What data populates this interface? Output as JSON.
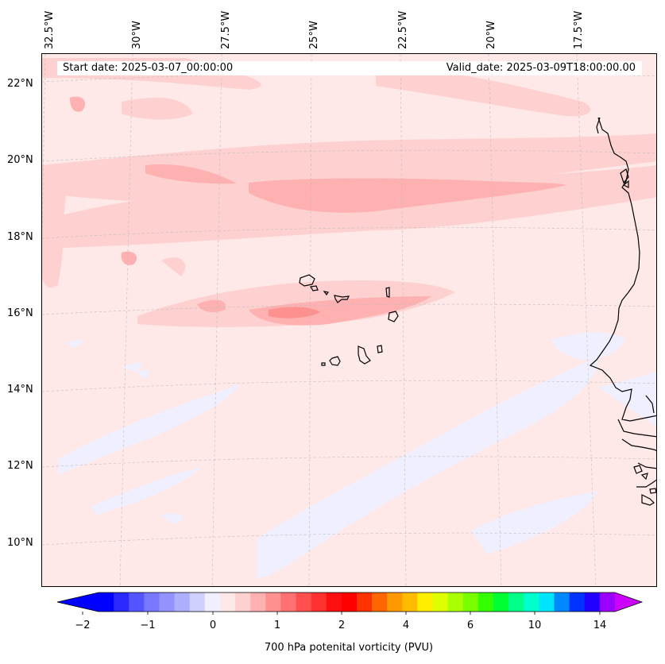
{
  "header": {
    "start_date": "Start date: 2025-03-07_00:00:00",
    "valid_date": "Valid_date: 2025-03-09T18:00:00.00"
  },
  "longitude_labels": [
    "32.5°W",
    "30°W",
    "27.5°W",
    "25°W",
    "22.5°W",
    "20°W",
    "17.5°W"
  ],
  "latitude_labels": [
    "22°N",
    "20°N",
    "18°N",
    "16°N",
    "14°N",
    "12°N",
    "10°N"
  ],
  "colorbar": {
    "label": "700 hPa potenital vorticity (PVU)",
    "tick_labels": [
      "−2",
      "−1",
      "0",
      "1",
      "2",
      "4",
      "6",
      "10",
      "14"
    ],
    "colors": [
      "#0000ff",
      "#2a2aff",
      "#5555ff",
      "#7777ff",
      "#9393ff",
      "#aeaeff",
      "#d0d0ff",
      "#efefff",
      "#ffe8e8",
      "#ffd0d0",
      "#ffb0b0",
      "#ff9090",
      "#ff7070",
      "#ff5050",
      "#ff3030",
      "#ff1010",
      "#ff0000",
      "#ff3300",
      "#ff6600",
      "#ff9900",
      "#ffbb00",
      "#ffee00",
      "#ddff00",
      "#aaff00",
      "#77ff00",
      "#33ff00",
      "#00ff33",
      "#00ff88",
      "#00ffcc",
      "#00e5ff",
      "#0088ff",
      "#0033ff",
      "#2200ff",
      "#9900ff"
    ],
    "extend_min_color": "#0000ff",
    "extend_max_color": "#cc00ff"
  },
  "map": {
    "background_color": "#ffe8e8",
    "band_light_color": "#ffd0d0",
    "band_mid_color": "#ffb0b0",
    "band_strong_color": "#ff9090",
    "negative_color": "#efefff",
    "coast_color": "#000000",
    "grid_color": "#bbbbbb"
  }
}
